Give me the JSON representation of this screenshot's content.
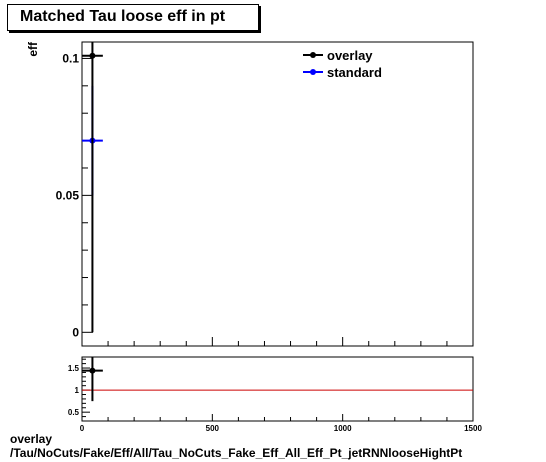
{
  "title": "Matched Tau loose eff in pt",
  "footer": {
    "line1": "overlay",
    "line2": "/Tau/NoCuts/Fake/Eff/All/Tau_NoCuts_Fake_Eff_All_Eff_Pt_jetRNNlooseHightPt"
  },
  "chart_data": [
    {
      "type": "scatter",
      "title": "Matched Tau loose eff in pt",
      "xlabel": "",
      "ylabel": "eff",
      "xlim": [
        0,
        1500
      ],
      "ylim": [
        -0.005,
        0.106
      ],
      "yticks": [
        0,
        0.05,
        0.1
      ],
      "ytick_labels": [
        "0",
        "0.05",
        "0.1"
      ],
      "legend_position": "top-right",
      "series": [
        {
          "name": "overlay",
          "color": "#000000",
          "points": [
            {
              "x": 40,
              "y": 0.101,
              "xerr": 40,
              "ylow": 0.0,
              "yhigh": 0.106
            }
          ]
        },
        {
          "name": "standard",
          "color": "#0000ff",
          "points": [
            {
              "x": 40,
              "y": 0.07,
              "xerr": 40,
              "ylow": 0.05,
              "yhigh": 0.09
            }
          ]
        }
      ]
    },
    {
      "type": "scatter",
      "title": "",
      "xlabel": "",
      "ylabel": "",
      "xlim": [
        0,
        1500
      ],
      "ylim": [
        0.3,
        1.75
      ],
      "xticks": [
        0,
        500,
        1000,
        1500
      ],
      "xtick_labels": [
        "0",
        "500",
        "1000",
        "1500"
      ],
      "yticks": [
        0.5,
        1,
        1.5
      ],
      "ytick_labels": [
        "0.5",
        "1",
        "1.5"
      ],
      "reference_line": {
        "y": 1,
        "color": "#cc0000"
      },
      "series": [
        {
          "name": "",
          "color": "#000000",
          "points": [
            {
              "x": 40,
              "y": 1.44,
              "xerr": 40,
              "ylow": 0.75,
              "yhigh": 1.75
            }
          ]
        }
      ]
    }
  ]
}
